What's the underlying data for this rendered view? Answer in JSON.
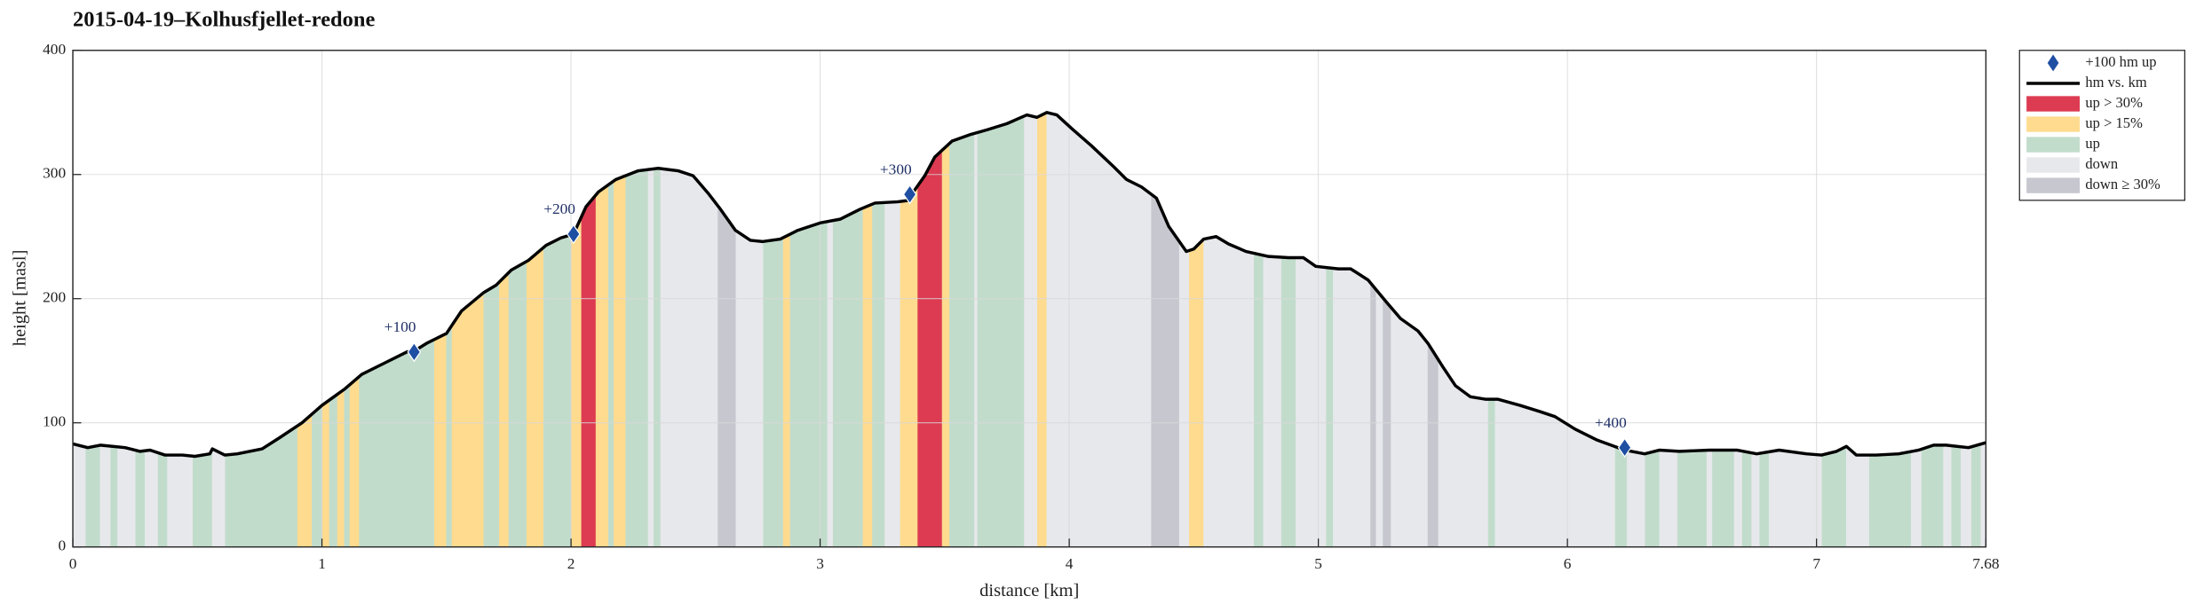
{
  "chart_data": {
    "type": "elevation_profile",
    "title": "2015-04-19–Kolhusfjellet-redone",
    "x_label": "distance [km]",
    "y_label": "height [masl]",
    "xlim": [
      0,
      7.68
    ],
    "ylim": [
      0,
      400
    ],
    "xticks": [
      0,
      1,
      2,
      3,
      4,
      5,
      6,
      7,
      7.68
    ],
    "yticks": [
      0,
      100,
      200,
      300,
      400
    ],
    "grid": true,
    "legend": "outside-top-right",
    "series": [
      {
        "name": "+100 hm up",
        "kind": "marker",
        "color": "#1f4fa3",
        "x": [
          1.37,
          2.01,
          3.36,
          6.23
        ],
        "values": [
          157,
          252,
          284,
          80
        ],
        "point_labels": [
          "+100",
          "+200",
          "+300",
          "+400"
        ]
      },
      {
        "name": "hm vs. km",
        "kind": "line",
        "color": "#000000",
        "x": [
          0,
          0.06,
          0.11,
          0.21,
          0.27,
          0.31,
          0.37,
          0.44,
          0.49,
          0.55,
          0.56,
          0.61,
          0.66,
          0.76,
          0.83,
          0.92,
          1.0,
          1.09,
          1.16,
          1.25,
          1.34,
          1.38,
          1.42,
          1.5,
          1.56,
          1.65,
          1.7,
          1.76,
          1.83,
          1.9,
          1.96,
          2.01,
          2.06,
          2.11,
          2.18,
          2.27,
          2.35,
          2.43,
          2.49,
          2.55,
          2.6,
          2.66,
          2.72,
          2.77,
          2.84,
          2.91,
          3.0,
          3.08,
          3.16,
          3.22,
          3.31,
          3.35,
          3.42,
          3.46,
          3.53,
          3.6,
          3.67,
          3.75,
          3.83,
          3.87,
          3.91,
          3.95,
          4.01,
          4.09,
          4.18,
          4.23,
          4.29,
          4.35,
          4.4,
          4.47,
          4.5,
          4.54,
          4.59,
          4.64,
          4.71,
          4.8,
          4.88,
          4.94,
          4.99,
          5.08,
          5.13,
          5.2,
          5.27,
          5.33,
          5.4,
          5.44,
          5.5,
          5.55,
          5.61,
          5.67,
          5.72,
          5.81,
          5.89,
          5.95,
          6.03,
          6.12,
          6.23,
          6.31,
          6.37,
          6.45,
          6.57,
          6.68,
          6.76,
          6.85,
          6.96,
          7.02,
          7.08,
          7.12,
          7.16,
          7.24,
          7.33,
          7.41,
          7.47,
          7.52,
          7.61,
          7.68
        ],
        "values": [
          83,
          80,
          82,
          80,
          77,
          78,
          74,
          74,
          73,
          75,
          79,
          74,
          75,
          79,
          88,
          100,
          114,
          127,
          139,
          148,
          157,
          159,
          164,
          172,
          190,
          205,
          211,
          223,
          231,
          243,
          249,
          252,
          274,
          286,
          296,
          303,
          305,
          303,
          299,
          285,
          272,
          255,
          247,
          246,
          248,
          255,
          261,
          264,
          272,
          277,
          278,
          279,
          299,
          314,
          327,
          332,
          336,
          341,
          348,
          346,
          350,
          348,
          337,
          323,
          306,
          296,
          290,
          281,
          258,
          238,
          240,
          248,
          250,
          244,
          238,
          234,
          233,
          233,
          226,
          224,
          224,
          215,
          198,
          184,
          174,
          164,
          145,
          130,
          121,
          119,
          119,
          114,
          109,
          105,
          95,
          86,
          78,
          75,
          78,
          77,
          78,
          78,
          75,
          78,
          75,
          74,
          77,
          81,
          74,
          74,
          75,
          78,
          82,
          82,
          80,
          84
        ]
      },
      {
        "name": "up > 30%",
        "kind": "band",
        "color": "#dc3b52",
        "segments": [
          [
            2.04,
            2.1
          ],
          [
            3.39,
            3.49
          ]
        ]
      },
      {
        "name": "up > 15%",
        "kind": "band",
        "color": "#fedb8e",
        "segments": [
          [
            0.9,
            0.96
          ],
          [
            1.0,
            1.03
          ],
          [
            1.06,
            1.09
          ],
          [
            1.11,
            1.15
          ],
          [
            1.45,
            1.5
          ],
          [
            1.52,
            1.65
          ],
          [
            1.71,
            1.75
          ],
          [
            1.82,
            1.89
          ],
          [
            2.0,
            2.04
          ],
          [
            2.1,
            2.15
          ],
          [
            2.17,
            2.22
          ],
          [
            2.85,
            2.88
          ],
          [
            3.17,
            3.21
          ],
          [
            3.32,
            3.39
          ],
          [
            3.49,
            3.52
          ],
          [
            3.87,
            3.91
          ],
          [
            4.48,
            4.54
          ]
        ]
      },
      {
        "name": "up",
        "kind": "band",
        "color": "#c2dccc",
        "segments": [
          [
            0.05,
            0.11
          ],
          [
            0.15,
            0.18
          ],
          [
            0.25,
            0.29
          ],
          [
            0.34,
            0.38
          ],
          [
            0.48,
            0.56
          ],
          [
            0.61,
            0.9
          ],
          [
            0.96,
            1.0
          ],
          [
            1.03,
            1.06
          ],
          [
            1.09,
            1.11
          ],
          [
            1.15,
            1.45
          ],
          [
            1.5,
            1.52
          ],
          [
            1.65,
            1.71
          ],
          [
            1.75,
            1.82
          ],
          [
            1.89,
            2.0
          ],
          [
            2.15,
            2.17
          ],
          [
            2.22,
            2.31
          ],
          [
            2.33,
            2.36
          ],
          [
            2.77,
            2.85
          ],
          [
            2.88,
            3.03
          ],
          [
            3.05,
            3.17
          ],
          [
            3.21,
            3.26
          ],
          [
            3.52,
            3.62
          ],
          [
            3.63,
            3.82
          ],
          [
            4.74,
            4.78
          ],
          [
            4.85,
            4.91
          ],
          [
            5.03,
            5.06
          ],
          [
            5.68,
            5.71
          ],
          [
            6.19,
            6.24
          ],
          [
            6.31,
            6.37
          ],
          [
            6.44,
            6.56
          ],
          [
            6.58,
            6.67
          ],
          [
            6.7,
            6.74
          ],
          [
            6.77,
            6.81
          ],
          [
            7.02,
            7.12
          ],
          [
            7.21,
            7.38
          ],
          [
            7.42,
            7.51
          ],
          [
            7.54,
            7.58
          ],
          [
            7.62,
            7.66
          ]
        ]
      },
      {
        "name": "down",
        "kind": "band",
        "color": "#e7e8ec",
        "segments": [
          [
            0,
            0.05
          ],
          [
            0.11,
            0.15
          ],
          [
            0.18,
            0.25
          ],
          [
            0.29,
            0.34
          ],
          [
            0.38,
            0.48
          ],
          [
            0.56,
            0.61
          ],
          [
            2.31,
            2.33
          ],
          [
            2.36,
            2.59
          ],
          [
            2.66,
            2.77
          ],
          [
            3.03,
            3.05
          ],
          [
            3.26,
            3.32
          ],
          [
            3.62,
            3.63
          ],
          [
            3.82,
            3.87
          ],
          [
            3.91,
            4.33
          ],
          [
            4.44,
            4.48
          ],
          [
            4.54,
            4.74
          ],
          [
            4.78,
            4.85
          ],
          [
            4.91,
            5.03
          ],
          [
            5.06,
            5.21
          ],
          [
            5.23,
            5.26
          ],
          [
            5.29,
            5.44
          ],
          [
            5.48,
            5.68
          ],
          [
            5.71,
            6.19
          ],
          [
            6.24,
            6.31
          ],
          [
            6.37,
            6.44
          ],
          [
            6.56,
            6.58
          ],
          [
            6.67,
            6.7
          ],
          [
            6.74,
            6.77
          ],
          [
            6.81,
            7.02
          ],
          [
            7.12,
            7.21
          ],
          [
            7.38,
            7.42
          ],
          [
            7.51,
            7.54
          ],
          [
            7.58,
            7.62
          ],
          [
            7.66,
            7.68
          ]
        ]
      },
      {
        "name": "down ≥ 30%",
        "kind": "band",
        "color": "#c6c7cf",
        "segments": [
          [
            2.59,
            2.66
          ],
          [
            4.33,
            4.44
          ],
          [
            5.21,
            5.23
          ],
          [
            5.26,
            5.29
          ],
          [
            5.44,
            5.48
          ]
        ]
      }
    ]
  }
}
